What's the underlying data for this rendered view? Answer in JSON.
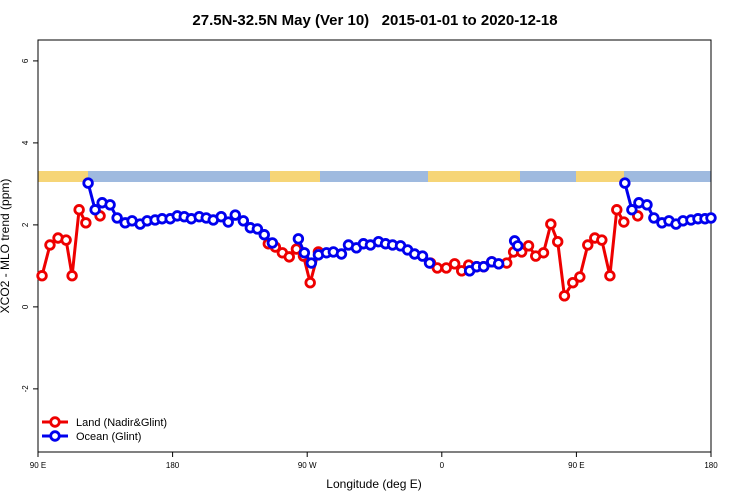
{
  "chart_data": {
    "type": "line",
    "title": "27.5N-32.5N May (Ver 10)   2015-01-01 to 2020-12-18",
    "x_label": "Longitude (deg E)",
    "y_label": "XCO2 - MLO trend (ppm)",
    "xlim": [
      90,
      540
    ],
    "ylim": [
      -3.54,
      6.51
    ],
    "xticks": [
      {
        "value": 90,
        "label": "90 E"
      },
      180,
      {
        "value": 270,
        "label": "90 W"
      },
      {
        "value": 360,
        "label": "0"
      },
      {
        "value": 450,
        "label": "90 E"
      },
      {
        "value": 540,
        "label": "180"
      }
    ],
    "yticks": [
      -2,
      0,
      2,
      4,
      6
    ],
    "legend": "bottom-left",
    "series": [
      {
        "name": "Land (Nadir&Glint)",
        "color": "#ee0000",
        "x": [
          92.7,
          98,
          103.4,
          108.8,
          112.8,
          117.5,
          122,
          null,
          131.5,
          null,
          244,
          248.7,
          253.4,
          258,
          262.8,
          267.5,
          272,
          277.5,
          null,
          352.5,
          357,
          363,
          368.6,
          373.3,
          378,
          383.3,
          388,
          393.4,
          403.4,
          408,
          413.4,
          418,
          422.8,
          428,
          432.9,
          437.5,
          442,
          447.6,
          452.3,
          457.6,
          462.3,
          467,
          472.4,
          477,
          481.7,
          null,
          491
        ],
        "values": [
          0.76,
          1.51,
          1.68,
          1.63,
          0.76,
          2.37,
          2.05,
          null,
          2.22,
          null,
          1.54,
          1.46,
          1.32,
          1.22,
          1.41,
          1.24,
          0.59,
          1.34,
          null,
          1.07,
          0.95,
          0.95,
          1.05,
          0.88,
          1.02,
          0.98,
          0.98,
          1.1,
          1.07,
          1.34,
          1.34,
          1.49,
          1.24,
          1.32,
          2.02,
          1.59,
          0.27,
          0.59,
          0.73,
          1.51,
          1.68,
          1.63,
          0.76,
          2.37,
          2.07,
          null,
          2.22
        ]
      },
      {
        "name": "Ocean (Glint)",
        "color": "#0000ee",
        "x": [
          123.5,
          128.2,
          132.9,
          138.2,
          142.9,
          148.3,
          152.9,
          158.3,
          163,
          168.3,
          173,
          178.4,
          183.1,
          187.8,
          192.5,
          197.8,
          202.5,
          207.2,
          212.5,
          217.2,
          221.9,
          227.3,
          232,
          236.7,
          241.3,
          246.7,
          null,
          264.1,
          268.1,
          272.8,
          277.5,
          282.9,
          287.5,
          292.9,
          297.6,
          302.9,
          307.6,
          312.3,
          317.7,
          322.4,
          327.1,
          332.4,
          337.1,
          341.8,
          347.1,
          351.8,
          null,
          378.6,
          383.3,
          388,
          393.4,
          398,
          null,
          408.7,
          410.8,
          null,
          482.4,
          487.1,
          491.8,
          497.2,
          501.8,
          507.2,
          511.9,
          516.6,
          521.3,
          526.6,
          531.3,
          536,
          540
        ],
        "values": [
          3.02,
          2.37,
          2.54,
          2.49,
          2.17,
          2.05,
          2.1,
          2.02,
          2.1,
          2.12,
          2.15,
          2.15,
          2.22,
          2.2,
          2.15,
          2.2,
          2.17,
          2.12,
          2.2,
          2.07,
          2.24,
          2.1,
          1.93,
          1.9,
          1.76,
          1.56,
          null,
          1.66,
          1.32,
          1.07,
          1.27,
          1.32,
          1.34,
          1.29,
          1.51,
          1.44,
          1.54,
          1.51,
          1.59,
          1.54,
          1.51,
          1.49,
          1.39,
          1.29,
          1.24,
          1.07,
          null,
          0.88,
          0.98,
          0.98,
          1.1,
          1.05,
          null,
          1.61,
          1.49,
          null,
          3.02,
          2.37,
          2.54,
          2.49,
          2.17,
          2.05,
          2.1,
          2.02,
          2.1,
          2.12,
          2.15,
          2.15,
          2.17
        ]
      }
    ]
  }
}
